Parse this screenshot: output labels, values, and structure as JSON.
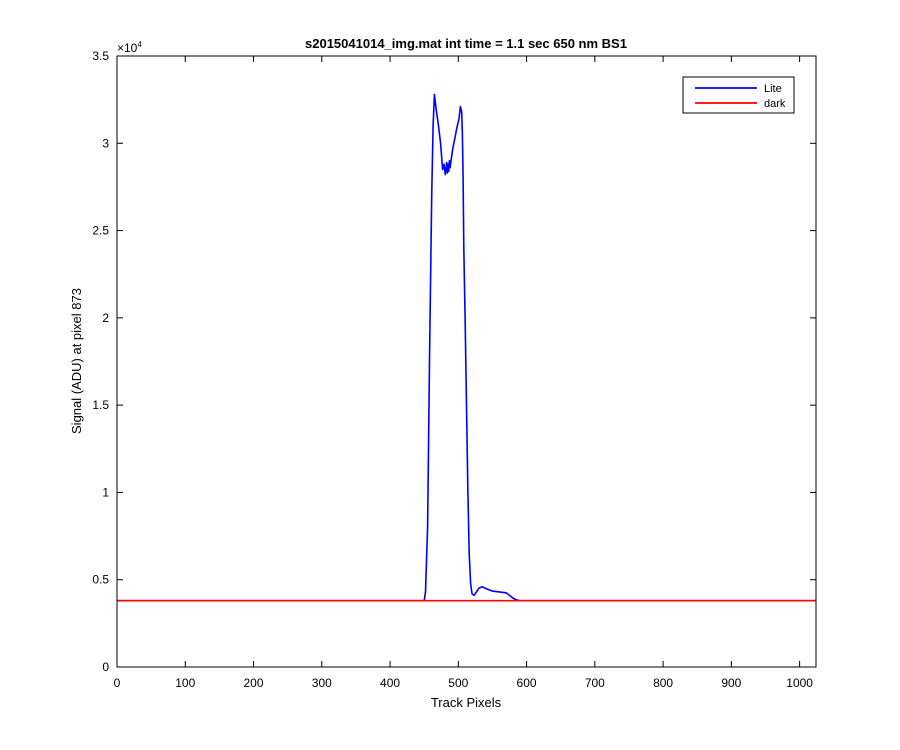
{
  "chart_data": {
    "type": "line",
    "title": "s2015041014_img.mat int time = 1.1 sec  650 nm BS1",
    "xlabel": "Track Pixels",
    "ylabel": "Signal (ADU) at pixel 873",
    "y_exponent_label": "×10",
    "y_exponent_power": "4",
    "xlim": [
      0,
      1024
    ],
    "ylim": [
      0,
      35000
    ],
    "x_ticks": [
      0,
      100,
      200,
      300,
      400,
      500,
      600,
      700,
      800,
      900,
      1000
    ],
    "x_tick_labels": [
      "0",
      "100",
      "200",
      "300",
      "400",
      "500",
      "600",
      "700",
      "800",
      "900",
      "1000"
    ],
    "y_ticks": [
      0,
      5000,
      10000,
      15000,
      20000,
      25000,
      30000,
      35000
    ],
    "y_tick_labels": [
      "0",
      "0.5",
      "1",
      "1.5",
      "2",
      "2.5",
      "3",
      "3.5"
    ],
    "grid": false,
    "legend_position": "top-right",
    "series": [
      {
        "name": "Lite",
        "color": "#0000ff",
        "x": [
          0,
          100,
          200,
          300,
          400,
          440,
          450,
          452,
          455,
          458,
          461,
          463,
          465,
          468,
          471,
          474,
          477,
          479,
          481,
          483,
          484,
          485,
          486,
          487,
          488,
          489,
          490,
          492,
          495,
          498,
          501,
          503,
          505,
          506,
          507,
          508,
          510,
          512,
          514,
          516,
          518,
          520,
          523,
          530,
          535,
          540,
          550,
          560,
          570,
          575,
          580,
          585,
          590,
          600,
          700,
          800,
          900,
          1024
        ],
        "y": [
          3800,
          3800,
          3800,
          3800,
          3800,
          3800,
          3800,
          4300,
          8000,
          18000,
          27000,
          31000,
          32800,
          31800,
          31000,
          30000,
          28500,
          28800,
          28200,
          28900,
          28300,
          28800,
          28400,
          29000,
          28600,
          28900,
          29200,
          29700,
          30300,
          30900,
          31400,
          32100,
          31800,
          30500,
          28000,
          24000,
          20000,
          15000,
          10000,
          6500,
          4800,
          4200,
          4100,
          4500,
          4600,
          4500,
          4350,
          4300,
          4250,
          4100,
          3950,
          3850,
          3800,
          3800,
          3800,
          3800,
          3800,
          3800
        ]
      },
      {
        "name": "dark",
        "color": "#ff0000",
        "x": [
          0,
          1024
        ],
        "y": [
          3800,
          3800
        ]
      }
    ]
  }
}
